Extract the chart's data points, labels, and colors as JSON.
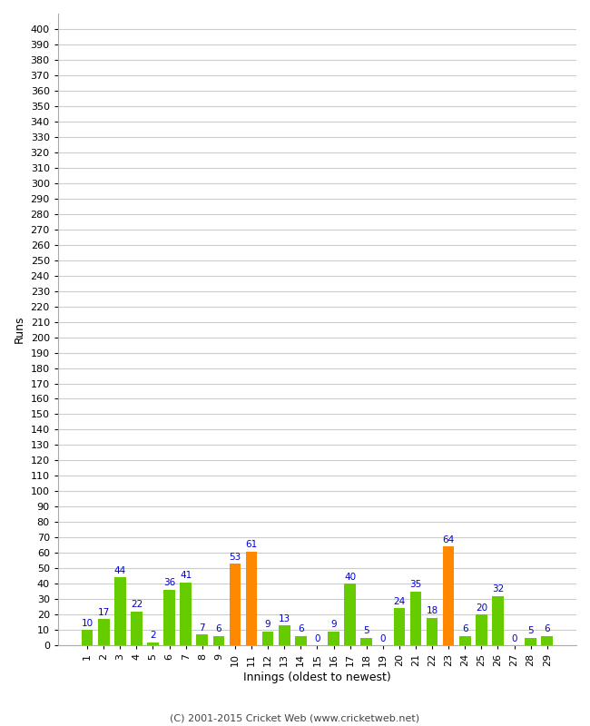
{
  "innings": [
    1,
    2,
    3,
    4,
    5,
    6,
    7,
    8,
    9,
    10,
    11,
    12,
    13,
    14,
    15,
    16,
    17,
    18,
    19,
    20,
    21,
    22,
    23,
    24,
    25,
    26,
    27,
    28,
    29
  ],
  "runs": [
    10,
    17,
    44,
    22,
    2,
    36,
    41,
    7,
    6,
    53,
    61,
    9,
    13,
    6,
    0,
    9,
    40,
    5,
    0,
    24,
    35,
    18,
    64,
    6,
    20,
    32,
    0,
    5,
    6
  ],
  "colors": [
    "#66cc00",
    "#66cc00",
    "#66cc00",
    "#66cc00",
    "#66cc00",
    "#66cc00",
    "#66cc00",
    "#66cc00",
    "#66cc00",
    "#ff8800",
    "#ff8800",
    "#66cc00",
    "#66cc00",
    "#66cc00",
    "#66cc00",
    "#66cc00",
    "#66cc00",
    "#66cc00",
    "#66cc00",
    "#66cc00",
    "#66cc00",
    "#66cc00",
    "#ff8800",
    "#66cc00",
    "#66cc00",
    "#66cc00",
    "#66cc00",
    "#66cc00",
    "#66cc00"
  ],
  "xlabel": "Innings (oldest to newest)",
  "ylabel": "Runs",
  "yticks": [
    0,
    10,
    20,
    30,
    40,
    50,
    60,
    70,
    80,
    90,
    100,
    110,
    120,
    130,
    140,
    150,
    160,
    170,
    180,
    190,
    200,
    210,
    220,
    230,
    240,
    250,
    260,
    270,
    280,
    290,
    300,
    310,
    320,
    330,
    340,
    350,
    360,
    370,
    380,
    390,
    400
  ],
  "ylim": [
    0,
    410
  ],
  "label_color": "#0000cc",
  "bg_color": "#ffffff",
  "grid_color": "#cccccc",
  "footer": "(C) 2001-2015 Cricket Web (www.cricketweb.net)"
}
